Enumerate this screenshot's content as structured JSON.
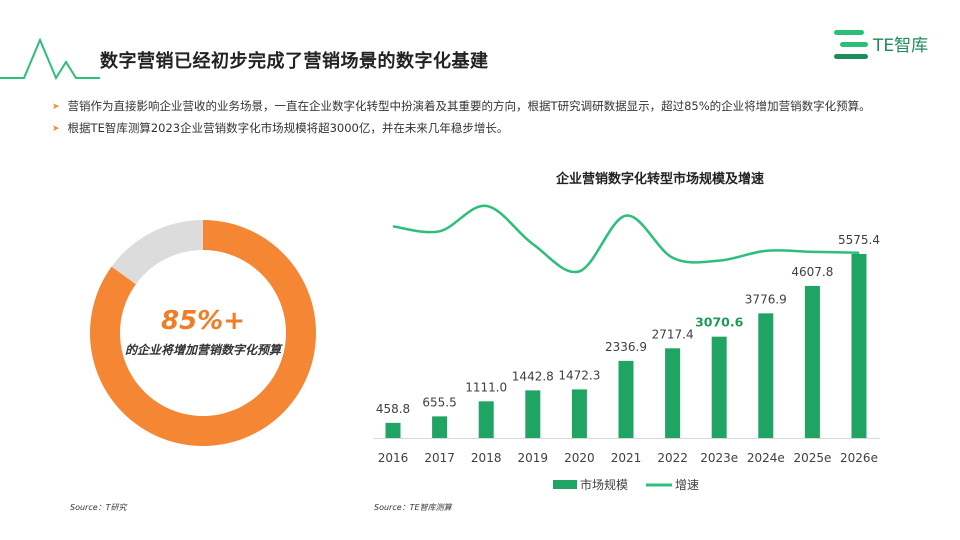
{
  "title": "数字营销已经初步完成了营销场景的数字化基建",
  "logo_text": "TE智库",
  "bullets": [
    "营销作为直接影响企业营收的业务场景，一直在企业数字化转型中扮演着及其重要的方向，根据T研究调研数据显示，超过85%的企业将增加营销数字化预算。",
    "根据TE智库测算2023企业营销数字化市场规模将超3000亿，并在未来几年稳步增长。"
  ],
  "donut": {
    "value_label": "85%+",
    "caption": "的企业将增加营销数字化预算",
    "share": 0.85,
    "color_main": "#f48634",
    "color_rest": "#dcdcdc"
  },
  "sources": {
    "left": "Source：T研究",
    "right": "Source：TE智库测算"
  },
  "colors": {
    "accent_green": "#2bbf7a",
    "bar_green": "#1fa463",
    "highlight_green": "#1f9a5a",
    "orange": "#f48634"
  },
  "chart_data": {
    "type": "bar",
    "title": "企业营销数字化转型市场规模及增速",
    "categories": [
      "2016",
      "2017",
      "2018",
      "2019",
      "2020",
      "2021",
      "2022",
      "2023e",
      "2024e",
      "2025e",
      "2026e"
    ],
    "series": [
      {
        "name": "市场规模",
        "type": "bar",
        "values": [
          458.8,
          655.5,
          1111.0,
          1442.8,
          1472.3,
          2336.9,
          2717.4,
          3070.6,
          3776.9,
          4607.8,
          5575.4
        ],
        "labels": [
          "458.8",
          "655.5",
          "1111.0",
          "1442.8",
          "1472.3",
          "2336.9",
          "2717.4",
          "3070.6",
          "3776.9",
          "4607.8",
          "5575.4"
        ]
      },
      {
        "name": "增速",
        "type": "line",
        "values": [
          0.48,
          0.43,
          0.69,
          0.3,
          0.02,
          0.59,
          0.16,
          0.13,
          0.23,
          0.22,
          0.21
        ]
      }
    ],
    "highlight_index": 7,
    "ylim": [
      0,
      6500
    ],
    "growth_range": [
      -0.15,
      0.75
    ],
    "legend_position": "bottom",
    "grid": false
  }
}
